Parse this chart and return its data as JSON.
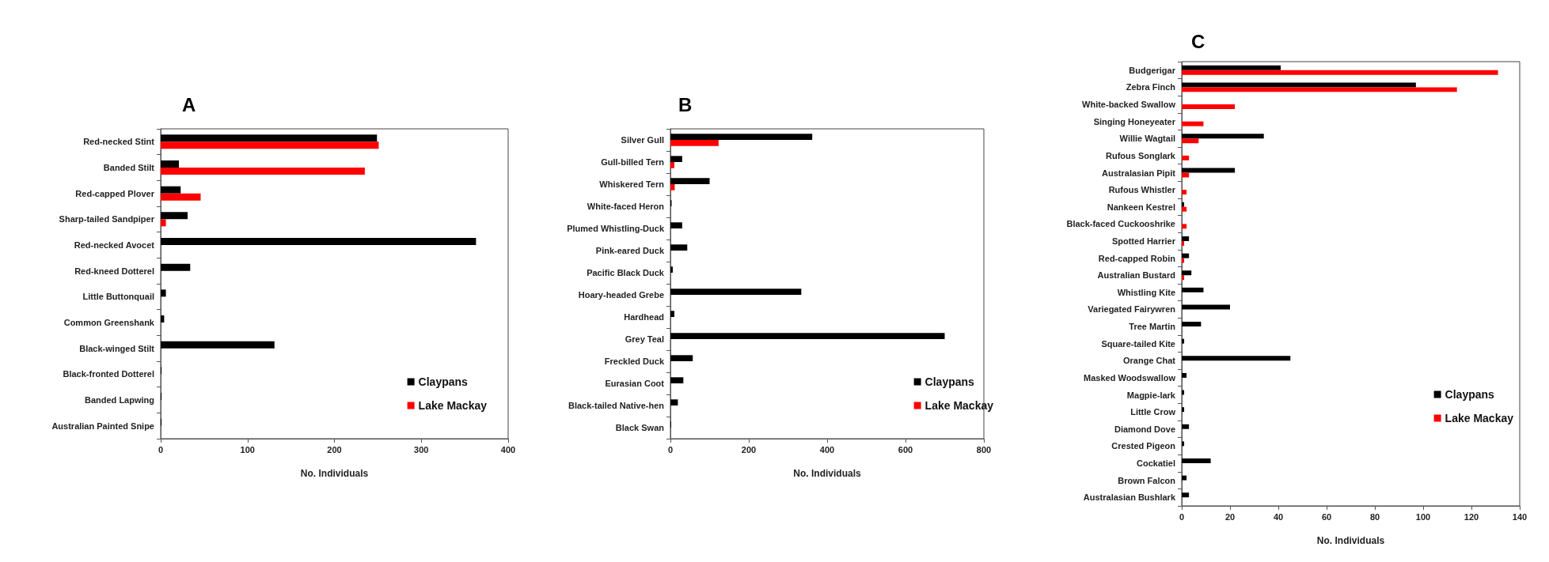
{
  "chart_data": [
    {
      "type": "bar",
      "orientation": "horizontal",
      "title": "A",
      "xlabel": "No. Individuals",
      "categories": [
        "Red-necked Stint",
        "Banded Stilt",
        "Red-capped Plover",
        "Sharp-tailed Sandpiper",
        "Red-necked Avocet",
        "Red-kneed Dotterel",
        "Little Buttonquail",
        "Common Greenshank",
        "Black-winged Stilt",
        "Black-fronted Dotterel",
        "Banded Lapwing",
        "Australian Painted Snipe"
      ],
      "series": [
        {
          "name": "Claypans",
          "color": "#000000",
          "values": [
            249,
            21,
            23,
            31,
            363,
            34,
            6,
            4,
            131,
            1,
            1,
            1
          ]
        },
        {
          "name": "Lake Mackay",
          "color": "#ff0000",
          "values": [
            251,
            235,
            46,
            6,
            null,
            null,
            null,
            null,
            null,
            null,
            null,
            null
          ]
        }
      ],
      "xlim": [
        0,
        400
      ],
      "xticks": [
        0,
        100,
        200,
        300,
        400
      ],
      "grid": false,
      "legend": "bottom right"
    },
    {
      "type": "bar",
      "orientation": "horizontal",
      "title": "B",
      "xlabel": "No. Individuals",
      "categories": [
        "Silver Gull",
        "Gull-billed Tern",
        "Whiskered Tern",
        "White-faced Heron",
        "Plumed Whistling-Duck",
        "Pink-eared Duck",
        "Pacific Black Duck",
        "Hoary-headed Grebe",
        "Hardhead",
        "Grey Teal",
        "Freckled Duck",
        "Eurasian Coot",
        "Black-tailed Native-hen",
        "Black Swan"
      ],
      "series": [
        {
          "name": "Claypans",
          "color": "#000000",
          "values": [
            362,
            30,
            100,
            3,
            30,
            43,
            6,
            334,
            10,
            700,
            57,
            33,
            19,
            2
          ]
        },
        {
          "name": "Lake Mackay",
          "color": "#ff0000",
          "values": [
            123,
            10,
            11,
            null,
            null,
            null,
            null,
            null,
            null,
            null,
            null,
            null,
            null,
            null
          ]
        }
      ],
      "xlim": [
        0,
        800
      ],
      "xticks": [
        0,
        200,
        400,
        600,
        800
      ],
      "grid": false,
      "legend": "bottom right"
    },
    {
      "type": "bar",
      "orientation": "horizontal",
      "title": "C",
      "xlabel": "No. Individuals",
      "categories": [
        "Budgerigar",
        "Zebra Finch",
        "White-backed Swallow",
        "Singing Honeyeater",
        "Willie Wagtail",
        "Rufous Songlark",
        "Australasian Pipit",
        "Rufous Whistler",
        "Nankeen Kestrel",
        "Black-faced Cuckooshrike",
        "Spotted Harrier",
        "Red-capped Robin",
        "Australian Bustard",
        "Whistling Kite",
        "Variegated Fairywren",
        "Tree Martin",
        "Square-tailed Kite",
        "Orange Chat",
        "Masked Woodswallow",
        "Magpie-lark",
        "Little Crow",
        "Diamond Dove",
        "Crested Pigeon",
        "Cockatiel",
        "Brown Falcon",
        "Australasian Bushlark"
      ],
      "series": [
        {
          "name": "Claypans",
          "color": "#000000",
          "values": [
            41,
            97,
            null,
            null,
            34,
            null,
            22,
            null,
            1,
            null,
            3,
            3,
            4,
            9,
            20,
            8,
            1,
            45,
            2,
            1,
            1,
            3,
            1,
            12,
            2,
            3
          ]
        },
        {
          "name": "Lake Mackay",
          "color": "#ff0000",
          "values": [
            131,
            114,
            22,
            9,
            7,
            3,
            3,
            2,
            2,
            2,
            1,
            1,
            1,
            null,
            null,
            null,
            null,
            null,
            null,
            null,
            null,
            null,
            null,
            null,
            null,
            null
          ]
        }
      ],
      "xlim": [
        0,
        140
      ],
      "xticks": [
        0,
        20,
        40,
        60,
        80,
        100,
        120,
        140
      ],
      "grid": false,
      "legend": "right"
    }
  ]
}
